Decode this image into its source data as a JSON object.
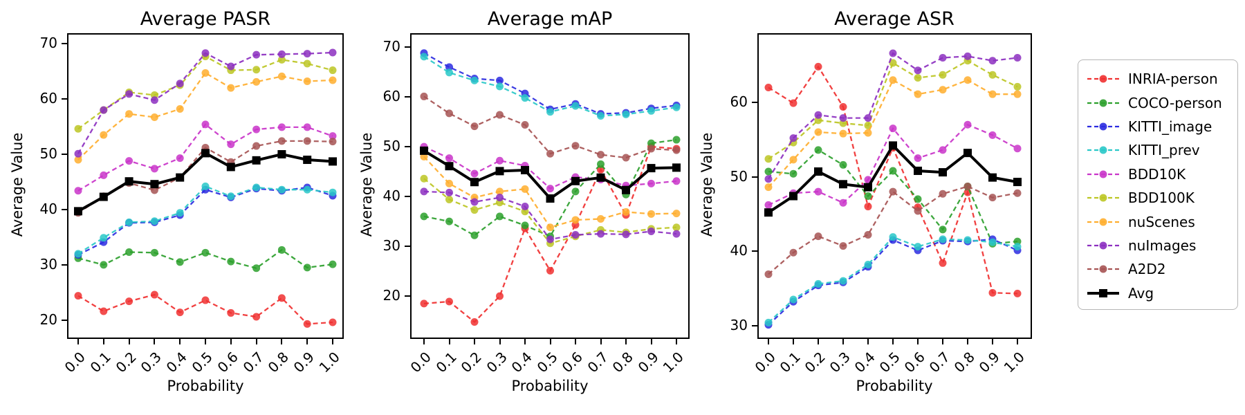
{
  "figure": {
    "background": "#ffffff"
  },
  "shared": {
    "x_label": "Probability",
    "y_label": "Average Value",
    "x_ticklabels": [
      "0.0",
      "0.1",
      "0.2",
      "0.3",
      "0.4",
      "0.5",
      "0.6",
      "0.7",
      "0.8",
      "0.9",
      "1.0"
    ]
  },
  "chart_data": [
    {
      "type": "line",
      "title": "Average PASR",
      "xlabel": "Probability",
      "ylabel": "Average Value",
      "x": [
        0.0,
        0.1,
        0.2,
        0.3,
        0.4,
        0.5,
        0.6,
        0.7,
        0.8,
        0.9,
        1.0
      ],
      "y_ticks": [
        70,
        60,
        50,
        40,
        30,
        20
      ],
      "ylim_top": 71.9,
      "ylim_bottom": 16.6,
      "grid": false,
      "series": [
        {
          "name": "INRIA-person",
          "color": "#f03030",
          "style": "dashed",
          "marker": "circle",
          "values": [
            24.4,
            21.6,
            23.4,
            24.6,
            21.4,
            23.6,
            21.3,
            20.6,
            24.0,
            19.3,
            19.6
          ]
        },
        {
          "name": "COCO-person",
          "color": "#2ca02c",
          "style": "dashed",
          "marker": "circle",
          "values": [
            31.2,
            30.0,
            32.3,
            32.2,
            30.5,
            32.2,
            30.6,
            29.4,
            32.7,
            29.5,
            30.1
          ]
        },
        {
          "name": "KITTI_image",
          "color": "#2b2be0",
          "style": "dashed",
          "marker": "circle",
          "values": [
            31.8,
            34.1,
            37.6,
            37.7,
            39.0,
            43.6,
            42.2,
            43.8,
            43.4,
            44.0,
            42.5
          ]
        },
        {
          "name": "KITTI_prev",
          "color": "#29c8c8",
          "style": "dashed",
          "marker": "circle",
          "values": [
            32.0,
            34.9,
            37.7,
            37.9,
            39.4,
            44.2,
            42.4,
            44.0,
            43.6,
            43.6,
            43.1
          ]
        },
        {
          "name": "BDD10K",
          "color": "#c934c9",
          "style": "dashed",
          "marker": "circle",
          "values": [
            43.4,
            46.2,
            48.8,
            47.4,
            49.3,
            55.4,
            51.8,
            54.5,
            54.9,
            54.9,
            53.3
          ]
        },
        {
          "name": "BDD100K",
          "color": "#bcc623",
          "style": "dashed",
          "marker": "circle",
          "values": [
            54.6,
            58.0,
            61.2,
            60.7,
            62.5,
            67.7,
            65.2,
            65.3,
            67.1,
            66.4,
            65.2
          ]
        },
        {
          "name": "nuScenes",
          "color": "#ffae2e",
          "style": "dashed",
          "marker": "circle",
          "values": [
            49.0,
            53.5,
            57.3,
            56.7,
            58.2,
            64.7,
            62.0,
            63.1,
            64.1,
            63.2,
            63.4
          ]
        },
        {
          "name": "nuImages",
          "color": "#8c2fc0",
          "style": "dashed",
          "marker": "circle",
          "values": [
            50.1,
            58.0,
            60.9,
            59.8,
            62.8,
            68.3,
            65.9,
            68.0,
            68.1,
            68.2,
            68.4
          ]
        },
        {
          "name": "A2D2",
          "color": "#a65353",
          "style": "dashed",
          "marker": "circle",
          "values": [
            39.4,
            42.4,
            44.8,
            43.5,
            45.8,
            51.2,
            48.6,
            51.5,
            52.4,
            52.4,
            52.3
          ]
        },
        {
          "name": "Avg",
          "color": "#000000",
          "style": "solid",
          "marker": "square",
          "values": [
            39.7,
            42.3,
            45.1,
            44.6,
            45.8,
            50.2,
            47.7,
            48.9,
            50.0,
            49.0,
            48.7
          ]
        }
      ]
    },
    {
      "type": "line",
      "title": "Average mAP",
      "xlabel": "Probability",
      "ylabel": "Average Value",
      "x": [
        0.0,
        0.1,
        0.2,
        0.3,
        0.4,
        0.5,
        0.6,
        0.7,
        0.8,
        0.9,
        1.0
      ],
      "y_ticks": [
        70,
        60,
        50,
        40,
        30,
        20
      ],
      "ylim_top": 72.8,
      "ylim_bottom": 11.4,
      "grid": false,
      "series": [
        {
          "name": "INRIA-person",
          "color": "#f03030",
          "style": "dashed",
          "marker": "circle",
          "values": [
            18.5,
            18.9,
            14.8,
            20.0,
            33.6,
            25.1,
            34.3,
            45.4,
            36.3,
            50.0,
            49.6
          ]
        },
        {
          "name": "COCO-person",
          "color": "#2ca02c",
          "style": "dashed",
          "marker": "circle",
          "values": [
            36.0,
            35.0,
            32.2,
            36.0,
            34.2,
            32.0,
            41.0,
            46.5,
            40.4,
            50.7,
            51.4
          ]
        },
        {
          "name": "KITTI_image",
          "color": "#2b2be0",
          "style": "dashed",
          "marker": "circle",
          "values": [
            68.8,
            66.0,
            63.7,
            63.3,
            60.7,
            57.5,
            58.6,
            56.6,
            56.8,
            57.7,
            58.3
          ]
        },
        {
          "name": "KITTI_prev",
          "color": "#29c8c8",
          "style": "dashed",
          "marker": "circle",
          "values": [
            68.1,
            64.9,
            63.3,
            62.1,
            59.8,
            57.0,
            58.2,
            56.2,
            56.5,
            57.2,
            57.9
          ]
        },
        {
          "name": "BDD10K",
          "color": "#c934c9",
          "style": "dashed",
          "marker": "circle",
          "values": [
            50.0,
            47.7,
            44.6,
            47.2,
            46.2,
            41.6,
            43.9,
            43.4,
            42.2,
            42.6,
            43.1
          ]
        },
        {
          "name": "BDD100K",
          "color": "#bcc623",
          "style": "dashed",
          "marker": "circle",
          "values": [
            43.6,
            39.4,
            37.3,
            38.8,
            37.0,
            30.6,
            32.0,
            33.3,
            32.8,
            33.5,
            33.8
          ]
        },
        {
          "name": "nuScenes",
          "color": "#ffae2e",
          "style": "dashed",
          "marker": "circle",
          "values": [
            48.0,
            42.6,
            39.8,
            41.0,
            41.5,
            33.8,
            35.3,
            35.5,
            36.9,
            36.5,
            36.6
          ]
        },
        {
          "name": "nuImages",
          "color": "#8c2fc0",
          "style": "dashed",
          "marker": "circle",
          "values": [
            41.0,
            40.8,
            38.9,
            39.8,
            38.0,
            31.4,
            32.3,
            32.5,
            32.4,
            33.0,
            32.5
          ]
        },
        {
          "name": "A2D2",
          "color": "#a65353",
          "style": "dashed",
          "marker": "circle",
          "values": [
            60.1,
            56.7,
            54.1,
            56.4,
            54.4,
            48.6,
            50.2,
            48.4,
            47.8,
            49.6,
            49.3
          ]
        },
        {
          "name": "Avg",
          "color": "#000000",
          "style": "solid",
          "marker": "square",
          "values": [
            49.2,
            46.1,
            42.9,
            45.1,
            45.3,
            39.6,
            43.1,
            43.8,
            41.3,
            45.7,
            45.8
          ]
        }
      ]
    },
    {
      "type": "line",
      "title": "Average ASR",
      "xlabel": "Probability",
      "ylabel": "Average Value",
      "x": [
        0.0,
        0.1,
        0.2,
        0.3,
        0.4,
        0.5,
        0.6,
        0.7,
        0.8,
        0.9,
        1.0
      ],
      "y_ticks": [
        60,
        50,
        40,
        30
      ],
      "ylim_top": 69.3,
      "ylim_bottom": 28.2,
      "grid": false,
      "series": [
        {
          "name": "INRIA-person",
          "color": "#f03030",
          "style": "dashed",
          "marker": "circle",
          "values": [
            62.0,
            59.9,
            64.8,
            59.4,
            46.0,
            53.9,
            45.9,
            38.4,
            47.9,
            34.4,
            34.3
          ]
        },
        {
          "name": "COCO-person",
          "color": "#2ca02c",
          "style": "dashed",
          "marker": "circle",
          "values": [
            50.7,
            50.4,
            53.6,
            51.6,
            47.4,
            50.8,
            47.0,
            42.9,
            48.7,
            41.0,
            41.3
          ]
        },
        {
          "name": "KITTI_image",
          "color": "#2b2be0",
          "style": "dashed",
          "marker": "circle",
          "values": [
            30.1,
            33.2,
            35.4,
            35.8,
            37.9,
            41.5,
            40.1,
            41.4,
            41.3,
            41.6,
            40.1
          ]
        },
        {
          "name": "KITTI_prev",
          "color": "#29c8c8",
          "style": "dashed",
          "marker": "circle",
          "values": [
            30.4,
            33.5,
            35.6,
            36.0,
            38.2,
            41.9,
            40.6,
            41.6,
            41.5,
            41.2,
            40.6
          ]
        },
        {
          "name": "BDD10K",
          "color": "#c934c9",
          "style": "dashed",
          "marker": "circle",
          "values": [
            46.2,
            47.8,
            48.0,
            46.5,
            49.6,
            56.5,
            52.5,
            53.6,
            57.0,
            55.6,
            53.8
          ]
        },
        {
          "name": "BDD100K",
          "color": "#bcc623",
          "style": "dashed",
          "marker": "circle",
          "values": [
            52.4,
            54.6,
            57.6,
            57.2,
            56.9,
            65.3,
            63.3,
            63.7,
            65.6,
            63.7,
            62.1
          ]
        },
        {
          "name": "nuScenes",
          "color": "#ffae2e",
          "style": "dashed",
          "marker": "circle",
          "values": [
            48.6,
            52.3,
            56.0,
            55.8,
            55.9,
            63.0,
            61.1,
            61.7,
            63.0,
            61.1,
            61.1
          ]
        },
        {
          "name": "nuImages",
          "color": "#8c2fc0",
          "style": "dashed",
          "marker": "circle",
          "values": [
            49.7,
            55.2,
            58.3,
            57.9,
            57.9,
            66.6,
            64.3,
            66.0,
            66.2,
            65.6,
            66.0
          ]
        },
        {
          "name": "A2D2",
          "color": "#a65353",
          "style": "dashed",
          "marker": "circle",
          "values": [
            36.9,
            39.8,
            42.0,
            40.7,
            42.2,
            48.0,
            45.4,
            47.7,
            48.7,
            47.2,
            47.8
          ]
        },
        {
          "name": "Avg",
          "color": "#000000",
          "style": "solid",
          "marker": "square",
          "values": [
            45.2,
            47.4,
            50.7,
            49.0,
            48.6,
            54.2,
            50.8,
            50.6,
            53.2,
            49.9,
            49.3
          ]
        }
      ]
    }
  ],
  "legend": {
    "position": "right-outside",
    "entries": [
      {
        "label": "INRIA-person",
        "color": "#f03030",
        "style": "dashed",
        "marker": "circle"
      },
      {
        "label": "COCO-person",
        "color": "#2ca02c",
        "style": "dashed",
        "marker": "circle"
      },
      {
        "label": "KITTI_image",
        "color": "#2b2be0",
        "style": "dashed",
        "marker": "circle"
      },
      {
        "label": "KITTI_prev",
        "color": "#29c8c8",
        "style": "dashed",
        "marker": "circle"
      },
      {
        "label": "BDD10K",
        "color": "#c934c9",
        "style": "dashed",
        "marker": "circle"
      },
      {
        "label": "BDD100K",
        "color": "#bcc623",
        "style": "dashed",
        "marker": "circle"
      },
      {
        "label": "nuScenes",
        "color": "#ffae2e",
        "style": "dashed",
        "marker": "circle"
      },
      {
        "label": "nuImages",
        "color": "#8c2fc0",
        "style": "dashed",
        "marker": "circle"
      },
      {
        "label": "A2D2",
        "color": "#a65353",
        "style": "dashed",
        "marker": "circle"
      },
      {
        "label": "Avg",
        "color": "#000000",
        "style": "solid",
        "marker": "square"
      }
    ]
  }
}
